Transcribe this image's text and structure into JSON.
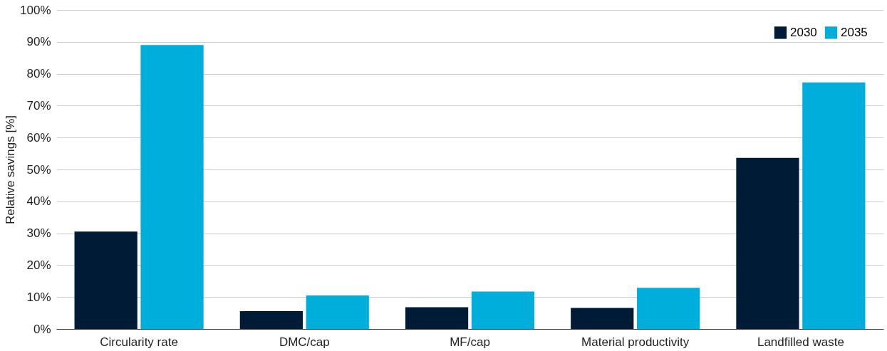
{
  "chart_data": {
    "type": "bar",
    "ylabel": "Relative savings [%]",
    "categories": [
      "Circularity rate",
      "DMC/cap",
      "MF/cap",
      "Material productivity",
      "Landfilled waste"
    ],
    "series": [
      {
        "name": "2030",
        "color": "#001b36",
        "values": [
          30.5,
          5.6,
          6.8,
          6.6,
          53.6
        ]
      },
      {
        "name": "2035",
        "color": "#00aedb",
        "values": [
          89.0,
          10.5,
          11.7,
          12.9,
          77.3
        ]
      }
    ],
    "ylim": [
      0,
      100
    ],
    "yticks": [
      {
        "value": 0,
        "label": "0%"
      },
      {
        "value": 10,
        "label": "10%"
      },
      {
        "value": 20,
        "label": "20%"
      },
      {
        "value": 30,
        "label": "30%"
      },
      {
        "value": 40,
        "label": "40%"
      },
      {
        "value": 50,
        "label": "50%"
      },
      {
        "value": 60,
        "label": "60%"
      },
      {
        "value": 70,
        "label": "70%"
      },
      {
        "value": 80,
        "label": "80%"
      },
      {
        "value": 90,
        "label": "90%"
      },
      {
        "value": 100,
        "label": "100%"
      }
    ],
    "grid": "y",
    "legend": "top right"
  }
}
